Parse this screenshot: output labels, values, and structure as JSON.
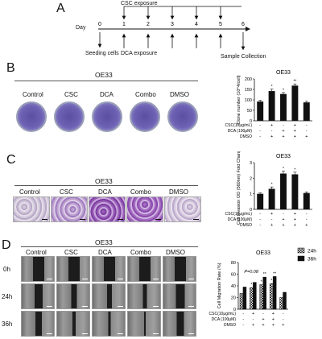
{
  "panels": {
    "a": "A",
    "b": "B",
    "c": "C",
    "d": "D"
  },
  "timeline": {
    "day_label": "Day",
    "ticks": [
      "0",
      "1",
      "2",
      "3",
      "4",
      "5",
      "6"
    ],
    "csc_exposure": "CSC exposure",
    "dca_exposure": "DCA exposure",
    "seeding": "Seeding cells",
    "collection": "Sample Collection"
  },
  "panel_b": {
    "cell_line": "OE33",
    "dish_labels": [
      "Control",
      "CSC",
      "DCA",
      "Combo",
      "DMSO"
    ]
  },
  "panel_c": {
    "cell_line": "OE33",
    "image_labels": [
      "Control",
      "CSC",
      "DCA",
      "Combo",
      "DMSO"
    ]
  },
  "panel_d": {
    "cell_line": "OE33",
    "column_labels": [
      "Control",
      "CSC",
      "DCA",
      "Combo",
      "DMSO"
    ],
    "row_labels": [
      "0h",
      "24h",
      "36h"
    ]
  },
  "chart_data": [
    {
      "type": "bar",
      "title": "OE33",
      "ylabel": "Clone number (10^4/cell)",
      "ylim": [
        0,
        200
      ],
      "yticks": [
        "0",
        "50",
        "100",
        "150",
        "200"
      ],
      "values": [
        92,
        142,
        128,
        168,
        88
      ],
      "errors": [
        6,
        9,
        7,
        8,
        5
      ],
      "significance": [
        "",
        "*",
        "*",
        "**",
        ""
      ],
      "treatment_rows": [
        {
          "label": "CSC(10μg/mL)",
          "marks": [
            "-",
            "+",
            "-",
            "+",
            "-"
          ]
        },
        {
          "label": "DCA  (100μM)",
          "marks": [
            "-",
            "-",
            "+",
            "+",
            "-"
          ]
        },
        {
          "label": "DMSO",
          "marks": [
            "-",
            "+",
            "+",
            "+",
            "+"
          ]
        }
      ]
    },
    {
      "type": "bar",
      "title": "OE33",
      "ylabel": "Cell Invasion OD (560nm) Fold Change",
      "ylim": [
        0,
        3
      ],
      "yticks": [
        "0",
        "1",
        "2",
        "3"
      ],
      "values": [
        1.0,
        1.32,
        2.3,
        2.25,
        1.05
      ],
      "errors": [
        0.06,
        0.12,
        0.15,
        0.14,
        0.07
      ],
      "significance": [
        "",
        "*",
        "*",
        "*",
        ""
      ],
      "treatment_rows": [
        {
          "label": "CSC(10μg/mL)",
          "marks": [
            "-",
            "+",
            "-",
            "+",
            "-"
          ]
        },
        {
          "label": "DCA  (100μM)",
          "marks": [
            "-",
            "-",
            "+",
            "+",
            "-"
          ]
        },
        {
          "label": "DMSO",
          "marks": [
            "-",
            "+",
            "+",
            "+",
            "+"
          ]
        }
      ]
    },
    {
      "type": "bar",
      "title": "OE33",
      "ylabel": "Cell Migration Rate (%)",
      "ylim": [
        0,
        80
      ],
      "yticks": [
        "0",
        "20",
        "40",
        "60",
        "80"
      ],
      "annotation": "P=0.08",
      "series": [
        {
          "name": "24h",
          "values": [
            27,
            37,
            42,
            44,
            20
          ]
        },
        {
          "name": "36h",
          "values": [
            38,
            46,
            55,
            56,
            29
          ]
        }
      ],
      "significance_24h": [
        "",
        "*",
        "*",
        "*",
        ""
      ],
      "significance_36h": [
        "",
        "",
        "**",
        "**",
        ""
      ],
      "treatment_rows": [
        {
          "label": "CSC(10μg/mL)",
          "marks": [
            "-",
            "+",
            "-",
            "+",
            "-"
          ]
        },
        {
          "label": "DCA  (100μM)",
          "marks": [
            "-",
            "-",
            "+",
            "+",
            "-"
          ]
        },
        {
          "label": "DMSO",
          "marks": [
            "-",
            "+",
            "+",
            "+",
            "+"
          ]
        }
      ]
    }
  ]
}
